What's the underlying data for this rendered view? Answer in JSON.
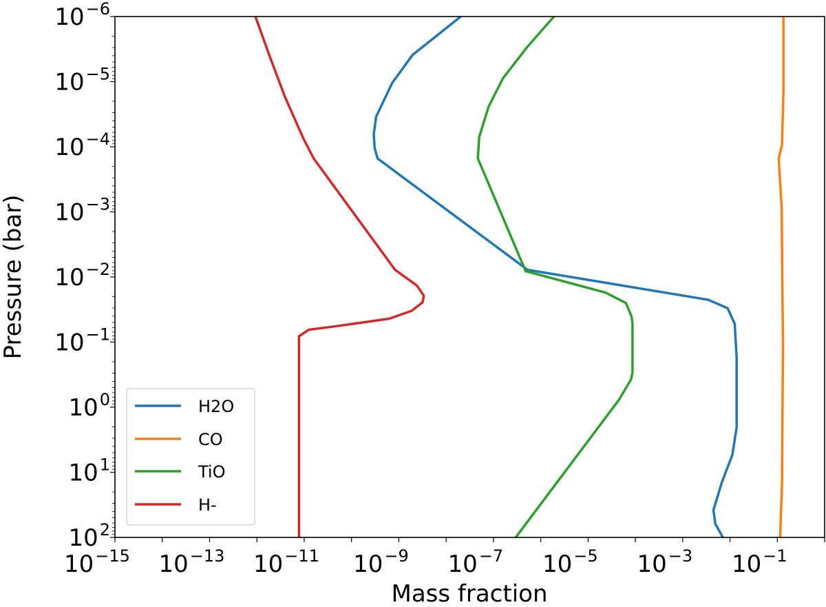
{
  "chart_data": {
    "type": "line",
    "title": "",
    "xlabel": "Mass fraction",
    "ylabel": "Pressure (bar)",
    "xscale": "log",
    "yscale": "log",
    "xlim": [
      1e-15,
      1
    ],
    "ylim": [
      100,
      1e-06
    ],
    "y_inverted": true,
    "grid": false,
    "legend_position": "lower left",
    "x_ticks": [
      {
        "exp": -15,
        "base": "10",
        "sup": "−15"
      },
      {
        "exp": -13,
        "base": "10",
        "sup": "−13"
      },
      {
        "exp": -11,
        "base": "10",
        "sup": "−11"
      },
      {
        "exp": -9,
        "base": "10",
        "sup": "−9"
      },
      {
        "exp": -7,
        "base": "10",
        "sup": "−7"
      },
      {
        "exp": -5,
        "base": "10",
        "sup": "−5"
      },
      {
        "exp": -3,
        "base": "10",
        "sup": "−3"
      },
      {
        "exp": -1,
        "base": "10",
        "sup": "−1"
      }
    ],
    "y_ticks": [
      {
        "exp": -6,
        "base": "10",
        "sup": "−6"
      },
      {
        "exp": -5,
        "base": "10",
        "sup": "−5"
      },
      {
        "exp": -4,
        "base": "10",
        "sup": "−4"
      },
      {
        "exp": -3,
        "base": "10",
        "sup": "−3"
      },
      {
        "exp": -2,
        "base": "10",
        "sup": "−2"
      },
      {
        "exp": -1,
        "base": "10",
        "sup": "−1"
      },
      {
        "exp": 0,
        "base": "10",
        "sup": "0"
      },
      {
        "exp": 1,
        "base": "10",
        "sup": "1"
      },
      {
        "exp": 2,
        "base": "10",
        "sup": "2"
      }
    ],
    "series_note": "points are [log10(mass fraction), log10(pressure bar)]",
    "series": [
      {
        "name": "H2O",
        "color": "#1f77b4",
        "points": [
          [
            -7.69,
            -6.0
          ],
          [
            -8.71,
            -5.41
          ],
          [
            -9.14,
            -4.98
          ],
          [
            -9.48,
            -4.46
          ],
          [
            -9.53,
            -4.19
          ],
          [
            -9.51,
            -3.98
          ],
          [
            -9.45,
            -3.82
          ],
          [
            -6.28,
            -2.11
          ],
          [
            -2.46,
            -1.65
          ],
          [
            -2.05,
            -1.52
          ],
          [
            -1.9,
            -1.28
          ],
          [
            -1.86,
            -0.75
          ],
          [
            -1.86,
            0.31
          ],
          [
            -1.95,
            0.73
          ],
          [
            -2.17,
            1.15
          ],
          [
            -2.35,
            1.58
          ],
          [
            -2.31,
            1.79
          ],
          [
            -2.15,
            2.0
          ]
        ]
      },
      {
        "name": "CO",
        "color": "#ff7f0e",
        "points": [
          [
            -0.87,
            -6.0
          ],
          [
            -0.87,
            -4.88
          ],
          [
            -0.9,
            -4.03
          ],
          [
            -0.97,
            -3.82
          ],
          [
            -0.91,
            -3.08
          ],
          [
            -0.88,
            -0.96
          ],
          [
            -0.9,
            1.16
          ],
          [
            -0.94,
            2.0
          ]
        ]
      },
      {
        "name": "TiO",
        "color": "#2ca02c",
        "points": [
          [
            -5.72,
            -6.0
          ],
          [
            -6.3,
            -5.52
          ],
          [
            -6.8,
            -5.05
          ],
          [
            -7.1,
            -4.62
          ],
          [
            -7.3,
            -4.15
          ],
          [
            -7.33,
            -3.82
          ],
          [
            -6.32,
            -2.09
          ],
          [
            -4.63,
            -1.76
          ],
          [
            -4.2,
            -1.6
          ],
          [
            -4.08,
            -1.39
          ],
          [
            -4.06,
            -1.28
          ],
          [
            -4.06,
            -0.54
          ],
          [
            -4.09,
            -0.43
          ],
          [
            -4.35,
            -0.11
          ],
          [
            -6.53,
            2.0
          ]
        ]
      },
      {
        "name": "H-",
        "color": "#d62728",
        "points": [
          [
            -12.03,
            -6.0
          ],
          [
            -11.74,
            -5.41
          ],
          [
            -11.41,
            -4.77
          ],
          [
            -11.02,
            -4.13
          ],
          [
            -10.8,
            -3.82
          ],
          [
            -9.08,
            -2.11
          ],
          [
            -8.62,
            -1.87
          ],
          [
            -8.47,
            -1.71
          ],
          [
            -8.5,
            -1.61
          ],
          [
            -8.73,
            -1.48
          ],
          [
            -9.2,
            -1.36
          ],
          [
            -10.36,
            -1.24
          ],
          [
            -10.9,
            -1.19
          ],
          [
            -11.11,
            -1.09
          ],
          [
            -11.11,
            2.0
          ]
        ]
      }
    ]
  },
  "legend": {
    "items": [
      {
        "label": "H2O",
        "color": "#1f77b4"
      },
      {
        "label": "CO",
        "color": "#ff7f0e"
      },
      {
        "label": "TiO",
        "color": "#2ca02c"
      },
      {
        "label": "H-",
        "color": "#d62728"
      }
    ]
  },
  "axes": {
    "xlabel": "Mass fraction",
    "ylabel": "Pressure (bar)"
  }
}
